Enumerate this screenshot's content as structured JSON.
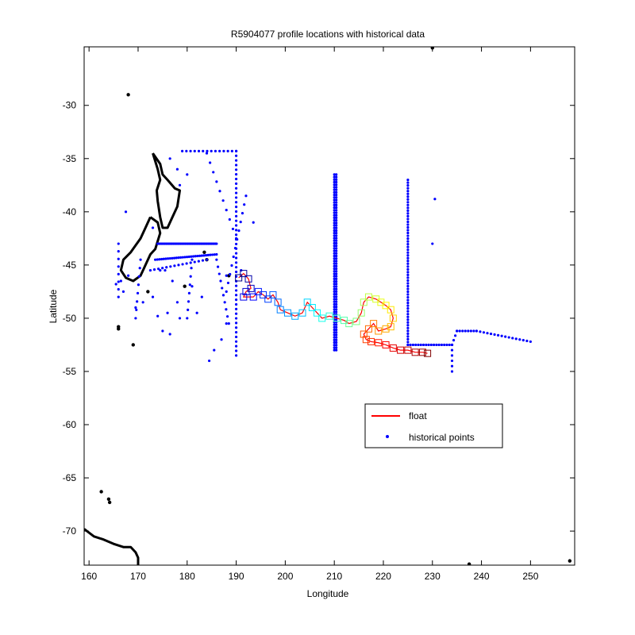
{
  "chart_data": {
    "type": "scatter",
    "title": "R5904077 profile locations with historical data",
    "xlabel": "Longitude",
    "ylabel": "Latitude",
    "xlim": [
      159,
      259
    ],
    "ylim": [
      -73.2,
      -24.5
    ],
    "xticks": [
      160,
      170,
      180,
      190,
      200,
      210,
      220,
      230,
      240,
      250
    ],
    "yticks": [
      -30,
      -35,
      -40,
      -45,
      -50,
      -55,
      -60,
      -65,
      -70
    ],
    "grid": false,
    "legend_position": "lower-center",
    "legend": [
      {
        "label": "float",
        "color": "#ff0000",
        "marker": "line"
      },
      {
        "label": "historical points",
        "color": "#0000ff",
        "marker": "dot"
      }
    ],
    "series": [
      {
        "name": "float",
        "color": "#ff0000",
        "points": [
          [
            190.5,
            -46.2
          ],
          [
            191.5,
            -45.8
          ],
          [
            192.5,
            -46.3
          ],
          [
            193.0,
            -47.2
          ],
          [
            192.0,
            -47.5
          ],
          [
            191.5,
            -48.0
          ],
          [
            193.5,
            -48.0
          ],
          [
            194.5,
            -47.5
          ],
          [
            195.5,
            -47.8
          ],
          [
            196.5,
            -48.2
          ],
          [
            197.5,
            -47.8
          ],
          [
            198.5,
            -48.5
          ],
          [
            199.0,
            -49.2
          ],
          [
            200.5,
            -49.5
          ],
          [
            202.0,
            -49.8
          ],
          [
            203.5,
            -49.5
          ],
          [
            204.5,
            -48.5
          ],
          [
            205.5,
            -49.0
          ],
          [
            206.5,
            -49.5
          ],
          [
            207.5,
            -50.0
          ],
          [
            209.0,
            -49.8
          ],
          [
            210.5,
            -50.0
          ],
          [
            212.0,
            -50.2
          ],
          [
            213.0,
            -50.5
          ],
          [
            214.5,
            -50.3
          ],
          [
            215.5,
            -49.5
          ],
          [
            216.0,
            -48.5
          ],
          [
            217.0,
            -48.0
          ],
          [
            218.5,
            -48.2
          ],
          [
            219.5,
            -48.5
          ],
          [
            220.5,
            -48.8
          ],
          [
            221.5,
            -49.2
          ],
          [
            222.0,
            -50.0
          ],
          [
            221.5,
            -50.8
          ],
          [
            220.5,
            -51.0
          ],
          [
            219.0,
            -51.2
          ],
          [
            218.0,
            -50.5
          ],
          [
            217.0,
            -51.0
          ],
          [
            216.0,
            -51.5
          ],
          [
            216.5,
            -52.0
          ],
          [
            217.5,
            -52.2
          ],
          [
            219.0,
            -52.3
          ],
          [
            220.5,
            -52.5
          ],
          [
            222.0,
            -52.8
          ],
          [
            223.5,
            -53.0
          ],
          [
            225.0,
            -53.0
          ],
          [
            226.5,
            -53.2
          ],
          [
            228.0,
            -53.2
          ],
          [
            229.0,
            -53.3
          ]
        ]
      },
      {
        "name": "historical points",
        "color": "#0000ff",
        "segments": [
          {
            "from": [
              174.0,
              -43.0
            ],
            "to": [
              186.0,
              -43.0
            ],
            "n": 50
          },
          {
            "from": [
              173.5,
              -44.5
            ],
            "to": [
              186.0,
              -44.0
            ],
            "n": 30
          },
          {
            "from": [
              172.5,
              -45.5
            ],
            "to": [
              184.0,
              -44.5
            ],
            "n": 15
          },
          {
            "from": [
              179.0,
              -34.3
            ],
            "to": [
              190.0,
              -34.3
            ],
            "n": 14
          },
          {
            "from": [
              190.0,
              -34.3
            ],
            "to": [
              190.0,
              -53.5
            ],
            "n": 45
          },
          {
            "from": [
              184.0,
              -34.5
            ],
            "to": [
              190.0,
              -42.5
            ],
            "n": 10
          },
          {
            "from": [
              210.0,
              -36.5
            ],
            "to": [
              210.0,
              -53.0
            ],
            "n": 70
          },
          {
            "from": [
              210.4,
              -36.5
            ],
            "to": [
              210.4,
              -53.0
            ],
            "n": 70
          },
          {
            "from": [
              225.0,
              -37.0
            ],
            "to": [
              225.0,
              -52.5
            ],
            "n": 60
          },
          {
            "from": [
              225.0,
              -52.5
            ],
            "to": [
              234.0,
              -52.5
            ],
            "n": 18
          },
          {
            "from": [
              234.0,
              -52.5
            ],
            "to": [
              234.0,
              -55.0
            ],
            "n": 6
          },
          {
            "from": [
              234.0,
              -52.5
            ],
            "to": [
              235.0,
              -51.2
            ],
            "n": 4
          },
          {
            "from": [
              235.0,
              -51.2
            ],
            "to": [
              239.0,
              -51.2
            ],
            "n": 8
          },
          {
            "from": [
              239.0,
              -51.2
            ],
            "to": [
              250.0,
              -52.2
            ],
            "n": 16
          },
          {
            "from": [
              192.0,
              -38.5
            ],
            "to": [
              188.0,
              -47.5
            ],
            "n": 12
          },
          {
            "from": [
              186.0,
              -44.5
            ],
            "to": [
              188.5,
              -50.5
            ],
            "n": 10
          },
          {
            "from": [
              181.0,
              -44.5
            ],
            "to": [
              180.0,
              -50.0
            ],
            "n": 8
          },
          {
            "from": [
              166.0,
              -43.0
            ],
            "to": [
              166.0,
              -48.0
            ],
            "n": 8
          },
          {
            "from": [
              170.5,
              -44.5
            ],
            "to": [
              169.5,
              -50.0
            ],
            "n": 8
          }
        ],
        "points": [
          [
            184.5,
            -54.0
          ],
          [
            185.5,
            -53.0
          ],
          [
            187.0,
            -52.0
          ],
          [
            188.0,
            -50.5
          ],
          [
            181.0,
            -47.0
          ],
          [
            178.0,
            -48.5
          ],
          [
            176.0,
            -49.5
          ],
          [
            175.0,
            -51.2
          ],
          [
            176.5,
            -51.5
          ],
          [
            178.5,
            -50.0
          ],
          [
            174.5,
            -45.5
          ],
          [
            167.5,
            -40.0
          ],
          [
            173.0,
            -41.5
          ],
          [
            169.5,
            -49.0
          ],
          [
            171.0,
            -48.5
          ],
          [
            230.5,
            -38.8
          ],
          [
            230.0,
            -43.0
          ],
          [
            193.5,
            -41.0
          ],
          [
            191.0,
            -45.5
          ],
          [
            188.0,
            -46.0
          ],
          [
            178.0,
            -36.0
          ],
          [
            180.0,
            -36.5
          ],
          [
            176.5,
            -35.0
          ],
          [
            178.5,
            -37.5
          ],
          [
            183.0,
            -48.0
          ],
          [
            182.0,
            -49.5
          ],
          [
            168.0,
            -46.0
          ],
          [
            166.5,
            -46.5
          ],
          [
            165.5,
            -46.8
          ],
          [
            167.0,
            -47.5
          ],
          [
            173.0,
            -48.0
          ],
          [
            174.0,
            -49.8
          ],
          [
            175.5,
            -45.5
          ],
          [
            177.0,
            -46.5
          ]
        ]
      },
      {
        "name": "coastline",
        "color": "#000000",
        "polylines": [
          [
            [
              173.0,
              -34.5
            ],
            [
              174.5,
              -35.5
            ],
            [
              175.0,
              -36.5
            ],
            [
              176.0,
              -37.0
            ],
            [
              177.5,
              -37.8
            ],
            [
              178.5,
              -38.0
            ],
            [
              178.0,
              -39.5
            ],
            [
              177.0,
              -40.5
            ],
            [
              176.0,
              -41.5
            ],
            [
              175.0,
              -41.5
            ],
            [
              174.5,
              -40.5
            ],
            [
              174.0,
              -39.0
            ],
            [
              173.8,
              -38.0
            ],
            [
              174.5,
              -37.0
            ],
            [
              174.0,
              -36.0
            ],
            [
              173.0,
              -34.5
            ]
          ],
          [
            [
              172.5,
              -40.5
            ],
            [
              174.0,
              -41.0
            ],
            [
              174.5,
              -42.0
            ],
            [
              173.5,
              -43.5
            ],
            [
              172.5,
              -44.0
            ],
            [
              171.0,
              -45.5
            ],
            [
              170.5,
              -46.0
            ],
            [
              169.0,
              -46.5
            ],
            [
              167.5,
              -46.2
            ],
            [
              166.5,
              -45.5
            ],
            [
              167.0,
              -44.5
            ],
            [
              168.5,
              -43.8
            ],
            [
              170.5,
              -42.5
            ],
            [
              171.5,
              -41.5
            ],
            [
              172.5,
              -40.5
            ]
          ],
          [
            [
              159.0,
              -69.8
            ],
            [
              161.0,
              -70.5
            ],
            [
              163.0,
              -70.8
            ],
            [
              165.0,
              -71.2
            ],
            [
              167.0,
              -71.5
            ],
            [
              168.5,
              -71.5
            ],
            [
              169.5,
              -72.0
            ],
            [
              170.0,
              -72.5
            ],
            [
              170.0,
              -73.2
            ]
          ]
        ],
        "points": [
          [
            168.0,
            -29.0
          ],
          [
            169.0,
            -52.5
          ],
          [
            166.0,
            -50.8
          ],
          [
            166.0,
            -51.0
          ],
          [
            162.5,
            -66.3
          ],
          [
            164.0,
            -67.0
          ],
          [
            164.2,
            -67.3
          ],
          [
            230.0,
            -24.6
          ],
          [
            237.5,
            -73.1
          ],
          [
            258.0,
            -72.8
          ],
          [
            183.5,
            -43.8
          ],
          [
            184.0,
            -44.5
          ],
          [
            188.5,
            -46.0
          ],
          [
            179.5,
            -47.0
          ],
          [
            172.0,
            -47.5
          ]
        ]
      }
    ]
  }
}
